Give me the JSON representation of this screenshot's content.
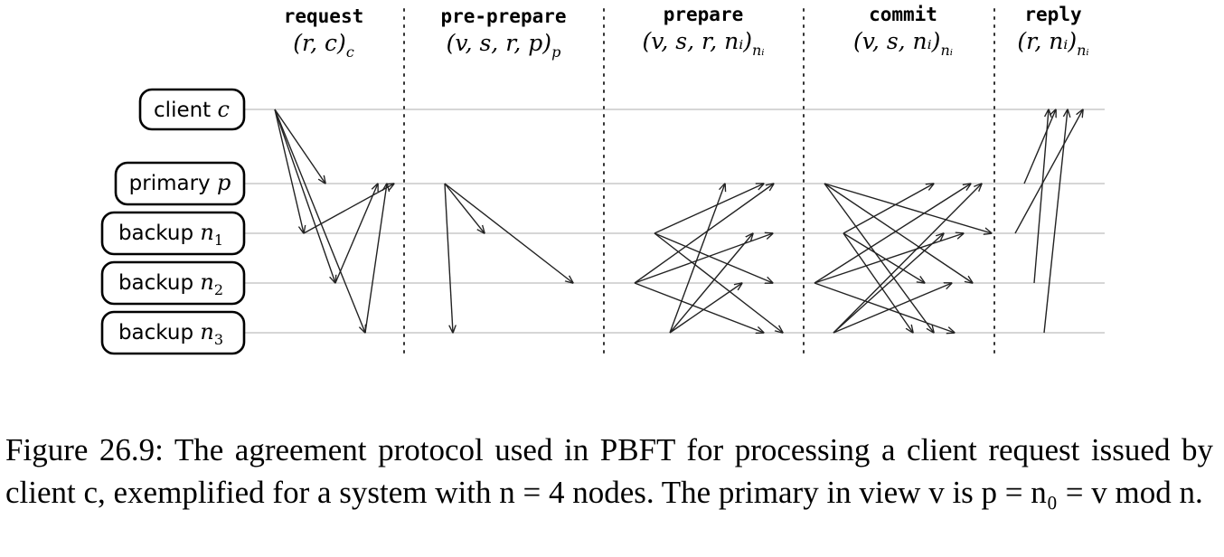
{
  "phases": [
    {
      "name": "request",
      "msg": "(r, c)",
      "msg_sub": "c"
    },
    {
      "name": "pre-prepare",
      "msg": "(v, s, r, p)",
      "msg_sub": "p"
    },
    {
      "name": "prepare",
      "msg": "(v, s, r, nᵢ)",
      "msg_sub": "nᵢ"
    },
    {
      "name": "commit",
      "msg": "(v, s, nᵢ)",
      "msg_sub": "nᵢ"
    },
    {
      "name": "reply",
      "msg": "(r, nᵢ)",
      "msg_sub": "nᵢ"
    }
  ],
  "nodes": [
    {
      "label": "client",
      "var": "c",
      "sub": ""
    },
    {
      "label": "primary",
      "var": "p",
      "sub": ""
    },
    {
      "label": "backup",
      "var": "n",
      "sub": "1"
    },
    {
      "label": "backup",
      "var": "n",
      "sub": "2"
    },
    {
      "label": "backup",
      "var": "n",
      "sub": "3"
    }
  ],
  "caption": "Figure 26.9: The agreement protocol used in PBFT for processing a client request issued by client c, exemplified for a system with n = 4 nodes. The primary in view v is p = n₀ = v mod n."
}
